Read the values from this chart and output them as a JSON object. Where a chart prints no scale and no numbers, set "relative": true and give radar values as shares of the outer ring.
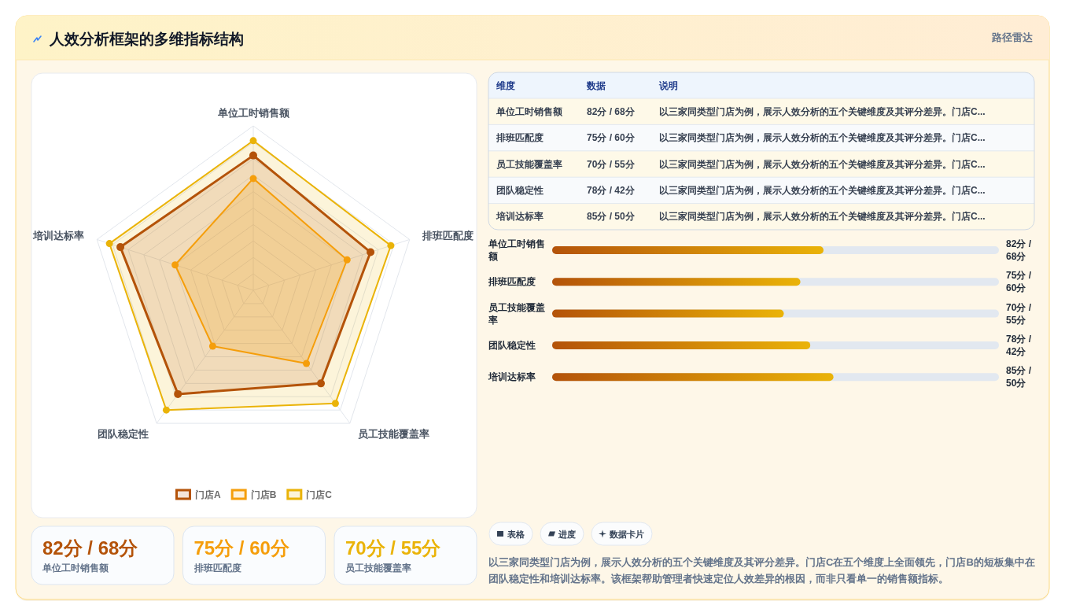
{
  "chart_data": [
    {
      "type": "other",
      "title": "人效分析框架的多维指标结构",
      "subtitle": "路径雷达"
    },
    {
      "type": "radar",
      "categories": [
        "单位工时销售额",
        "排班匹配度",
        "员工技能覆盖率",
        "团队稳定性",
        "培训达标率"
      ],
      "relative": true,
      "grid": true,
      "legend": "bottom",
      "marker": "circle",
      "series": [
        {
          "name": "门店A",
          "color": "#b45309",
          "values": [
            0.82,
            0.75,
            0.7,
            0.78,
            0.85
          ]
        },
        {
          "name": "门店B",
          "color": "#f59e0b",
          "values": [
            0.68,
            0.6,
            0.55,
            0.42,
            0.5
          ]
        },
        {
          "name": "门店C",
          "color": "#eab308",
          "values": [
            0.91,
            0.88,
            0.85,
            0.9,
            0.92
          ]
        }
      ]
    },
    {
      "type": "other",
      "ylabel": "维度",
      "categories": [
        "数据",
        "说明"
      ],
      "y_categories": [
        "单位工时销售额",
        "排班匹配度",
        "员工技能覆盖率",
        "团队稳定性",
        "培训达标率"
      ],
      "cell_labels": [
        [
          "82分 / 68分",
          "以三家同类型门店为例，展示人效分析的五个关键维度及其评分差异。门店C..."
        ],
        [
          "75分 / 60分",
          "以三家同类型门店为例，展示人效分析的五个关键维度及其评分差异。门店C..."
        ],
        [
          "70分 / 55分",
          "以三家同类型门店为例，展示人效分析的五个关键维度及其评分差异。门店C..."
        ],
        [
          "78分 / 42分",
          "以三家同类型门店为例，展示人效分析的五个关键维度及其评分差异。门店C..."
        ],
        [
          "85分 / 50分",
          "以三家同类型门店为例，展示人效分析的五个关键维度及其评分差异。门店C..."
        ]
      ]
    },
    {
      "type": "bar",
      "orientation": "horizontal",
      "categories": [
        "单位工时销售额",
        "排班匹配度",
        "员工技能覆盖率",
        "团队稳定性",
        "培训达标率"
      ],
      "values": [
        82,
        75,
        70,
        78,
        85
      ],
      "value_labels": [
        "82分 / 68分",
        "75分 / 60分",
        "70分 / 55分",
        "78分 / 42分",
        "85分 / 50分"
      ],
      "xlim": [
        0,
        135
      ],
      "tick_labels": "y",
      "color": "#b45309"
    },
    {
      "type": "other",
      "categories": [
        "单位工时销售额",
        "排班匹配度",
        "员工技能覆盖率"
      ],
      "value_labels": [
        "82分 / 68分",
        "75分 / 60分",
        "70分 / 55分"
      ]
    },
    {
      "type": "other",
      "categories": [
        "表格",
        "进度",
        "数据卡片"
      ],
      "annotations": [
        "以三家同类型门店为例，展示人效分析的五个关键维度及其评分差异。门店C在五个维度上全面领先，门店B的短板集中在团队稳定性和培训达标率。该框架帮助管理者快速定位人效差异的根因，而非只看单一的销售额指标。"
      ]
    }
  ]
}
